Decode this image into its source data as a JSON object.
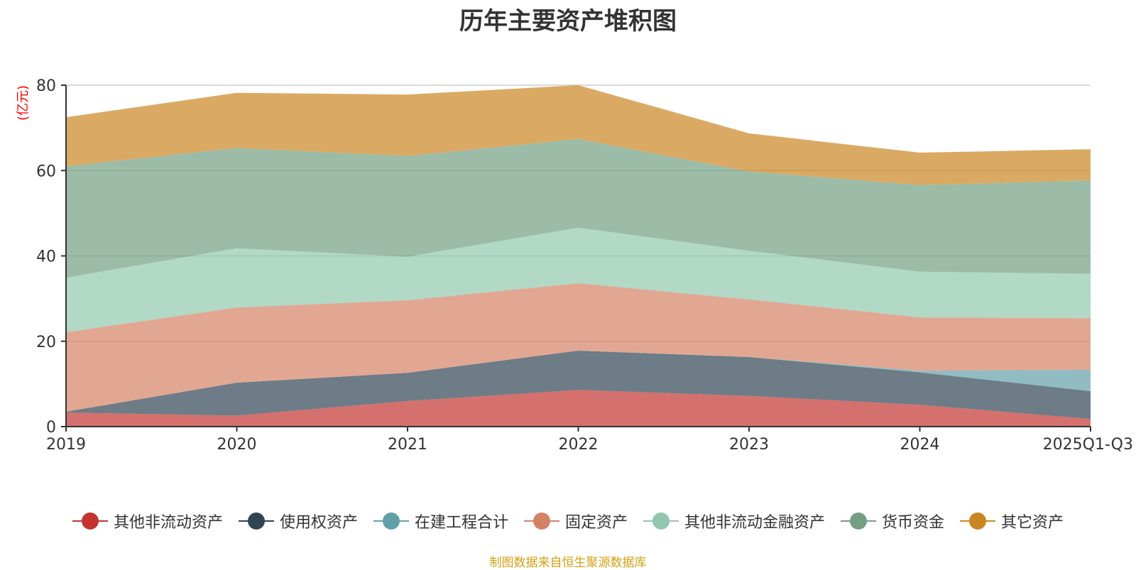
{
  "chart_data": {
    "type": "area",
    "stacked": true,
    "title": "历年主要资产堆积图",
    "ylabel": "(亿元)",
    "xlabel": "",
    "ylim": [
      0,
      80
    ],
    "yticks": [
      0,
      20,
      40,
      60,
      80
    ],
    "categories": [
      "2019",
      "2020",
      "2021",
      "2022",
      "2023",
      "2024",
      "2025Q1-Q3"
    ],
    "series": [
      {
        "name": "其他非流动资产",
        "color": "#c23531",
        "values": [
          3.3,
          2.6,
          6.0,
          8.6,
          7.2,
          5.1,
          1.8
        ]
      },
      {
        "name": "使用权资产",
        "color": "#2f4554",
        "values": [
          0.2,
          7.7,
          6.6,
          9.2,
          9.1,
          7.6,
          6.5
        ]
      },
      {
        "name": "在建工程合计",
        "color": "#61a0a8",
        "values": [
          0.0,
          0.0,
          0.0,
          0.0,
          0.0,
          0.4,
          5.0
        ]
      },
      {
        "name": "固定资产",
        "color": "#d48265",
        "values": [
          18.6,
          17.6,
          17.0,
          15.8,
          13.5,
          12.5,
          12.1
        ]
      },
      {
        "name": "其他非流动金融资产",
        "color": "#91c7ae",
        "values": [
          12.8,
          13.9,
          10.2,
          13.0,
          11.4,
          10.7,
          10.4
        ]
      },
      {
        "name": "货币资金",
        "color": "#749f83",
        "values": [
          26.1,
          23.5,
          23.6,
          20.8,
          18.6,
          20.3,
          21.9
        ]
      },
      {
        "name": "其它资产",
        "color": "#ca8622",
        "values": [
          11.5,
          12.9,
          14.4,
          12.6,
          8.9,
          7.6,
          7.3
        ]
      }
    ]
  },
  "source_text": "制图数据来自恒生聚源数据库",
  "colors": {
    "title": "#333333",
    "axis": "#333333",
    "grid": "#cccccc",
    "unit_label": "#ff0000",
    "source": "#d4a017"
  }
}
